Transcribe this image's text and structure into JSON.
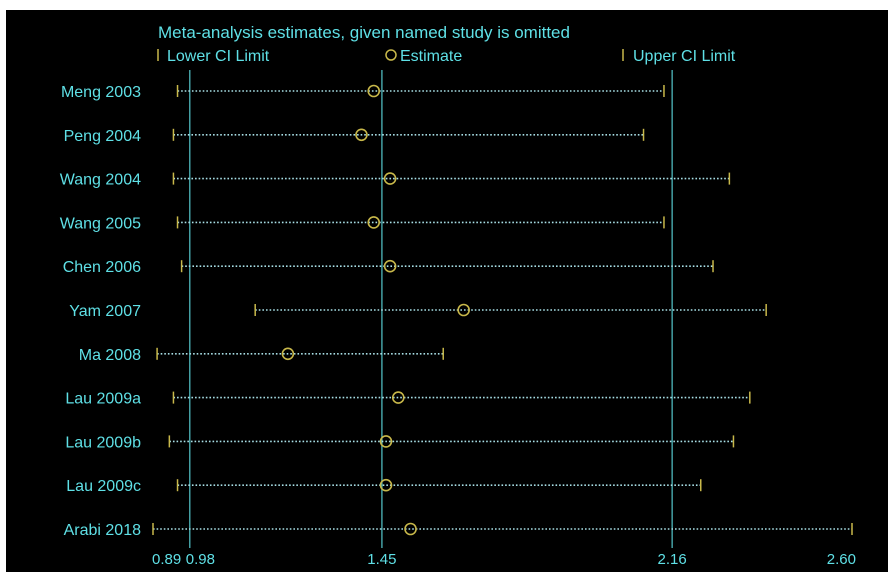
{
  "chart_data": {
    "type": "forest",
    "title": "Meta-analysis estimates, given named study is omitted",
    "legend": {
      "lower": "Lower CI Limit",
      "estimate": "Estimate",
      "upper": "Upper CI Limit",
      "placement": "top"
    },
    "x_ticks": [
      {
        "value": 0.89,
        "label": "0.89"
      },
      {
        "value": 0.98,
        "label": "0.98"
      },
      {
        "value": 1.45,
        "label": "1.45"
      },
      {
        "value": 2.16,
        "label": "2.16"
      },
      {
        "value": 2.6,
        "label": "2.60"
      }
    ],
    "reference_lines": [
      0.98,
      1.45,
      2.16
    ],
    "xlim": [
      0.89,
      2.6
    ],
    "studies": [
      {
        "name": "Meng 2003",
        "lower": 0.95,
        "estimate": 1.43,
        "upper": 2.14
      },
      {
        "name": "Peng 2004",
        "lower": 0.94,
        "estimate": 1.4,
        "upper": 2.09
      },
      {
        "name": "Wang 2004",
        "lower": 0.94,
        "estimate": 1.47,
        "upper": 2.3
      },
      {
        "name": "Wang 2005",
        "lower": 0.95,
        "estimate": 1.43,
        "upper": 2.14
      },
      {
        "name": "Chen 2006",
        "lower": 0.96,
        "estimate": 1.47,
        "upper": 2.26
      },
      {
        "name": "Yam 2007",
        "lower": 1.14,
        "estimate": 1.65,
        "upper": 2.39
      },
      {
        "name": "Ma 2008",
        "lower": 0.9,
        "estimate": 1.22,
        "upper": 1.6
      },
      {
        "name": "Lau 2009a",
        "lower": 0.94,
        "estimate": 1.49,
        "upper": 2.35
      },
      {
        "name": "Lau 2009b",
        "lower": 0.93,
        "estimate": 1.46,
        "upper": 2.31
      },
      {
        "name": "Lau 2009c",
        "lower": 0.95,
        "estimate": 1.46,
        "upper": 2.23
      },
      {
        "name": "Arabi 2018",
        "lower": 0.89,
        "estimate": 1.52,
        "upper": 2.6
      }
    ],
    "colors": {
      "background": "#000000",
      "text": "#5fe0e6",
      "reference_line": "#4fb8bd",
      "ci_line": "#a8dfe6",
      "marker": "#c8b84a"
    }
  }
}
